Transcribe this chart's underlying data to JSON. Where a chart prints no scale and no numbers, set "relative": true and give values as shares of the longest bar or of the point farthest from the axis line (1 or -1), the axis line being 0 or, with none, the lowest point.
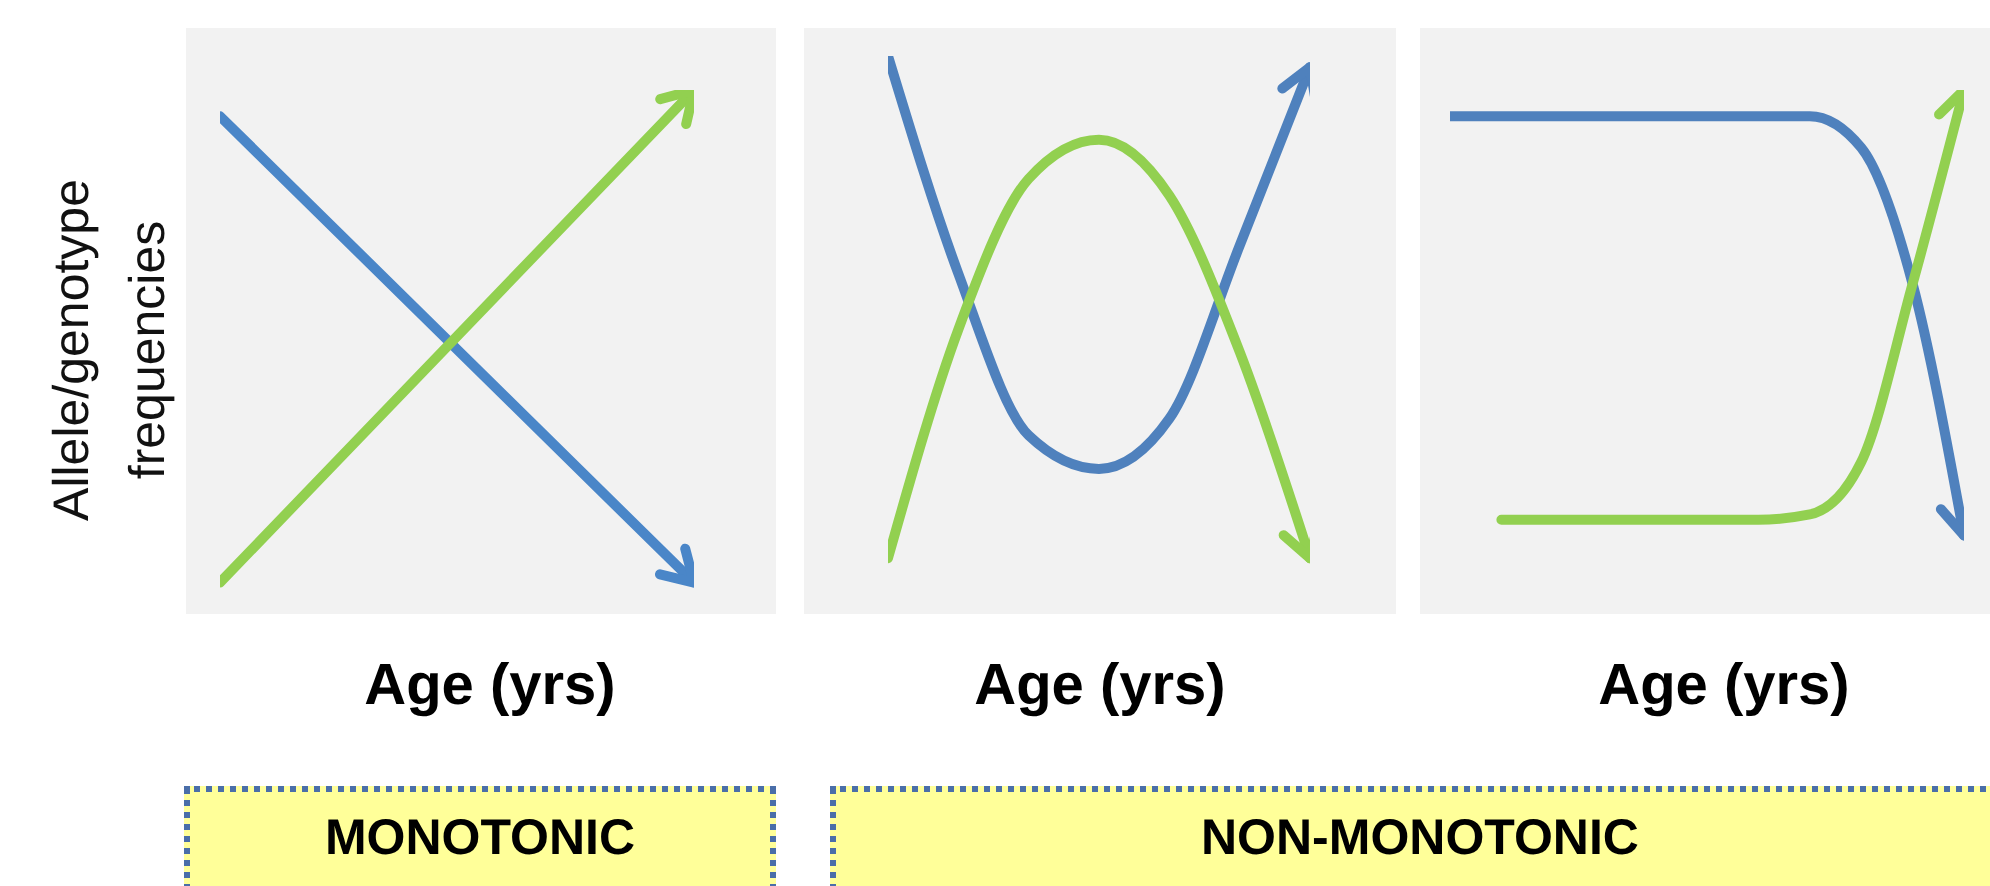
{
  "chart_data": [
    {
      "type": "line",
      "relative": true,
      "ylabel": "Allele/genotype frequencies",
      "xlabel": "Age (yrs)",
      "categories": [
        null,
        null
      ],
      "series": [
        {
          "color": "#4a86c8",
          "values": [
            0.95,
            0.06
          ]
        },
        {
          "color": "#92d050",
          "values": [
            0.06,
            1
          ]
        }
      ],
      "annotations": [
        "MONOTONIC"
      ]
    },
    {
      "type": "line",
      "relative": true,
      "xlabel": "Age (yrs)",
      "categories": [
        null,
        null,
        null,
        null,
        null,
        null,
        null
      ],
      "series": [
        {
          "color": "#4f81bd",
          "values": [
            1,
            0.61,
            0.32,
            0.26,
            0.35,
            0.66,
            0.98
          ]
        },
        {
          "color": "#92d050",
          "values": [
            0.1,
            0.51,
            0.78,
            0.85,
            0.75,
            0.47,
            0.1
          ]
        }
      ],
      "annotations": [
        "NON-MONOTONIC"
      ]
    },
    {
      "type": "line",
      "relative": true,
      "xlabel": "Age (yrs)",
      "categories": [
        null,
        null,
        null,
        null,
        null,
        null,
        null,
        null,
        null,
        null,
        null
      ],
      "series": [
        {
          "color": "#4f81bd",
          "values": [
            0.95,
            0.95,
            0.95,
            0.95,
            0.95,
            0.95,
            0.95,
            0.95,
            0.89,
            0.63,
            0.15
          ]
        },
        {
          "color": "#92d050",
          "values": [
            null,
            0.18,
            0.18,
            0.18,
            0.18,
            0.18,
            0.18,
            0.19,
            0.29,
            0.63,
            1
          ]
        }
      ]
    }
  ]
}
